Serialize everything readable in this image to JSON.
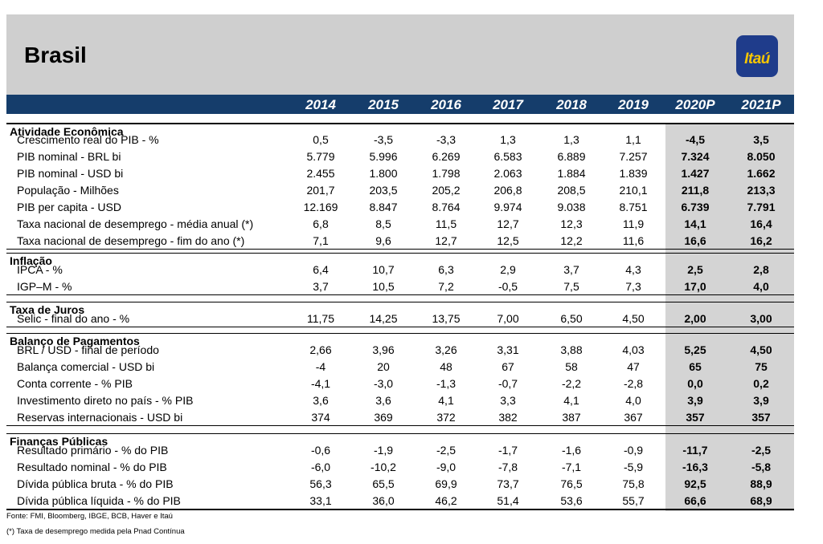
{
  "title": "Brasil",
  "logo": "Itaú",
  "years": [
    "2014",
    "2015",
    "2016",
    "2017",
    "2018",
    "2019",
    "2020P",
    "2021P"
  ],
  "sections": [
    {
      "label": "Atividade Econômica",
      "rows": [
        {
          "label": "Crescimento real do PIB - %",
          "values": [
            "0,5",
            "-3,5",
            "-3,3",
            "1,3",
            "1,3",
            "1,1",
            "-4,5",
            "3,5"
          ]
        },
        {
          "label": "PIB nominal - BRL bi",
          "values": [
            "5.779",
            "5.996",
            "6.269",
            "6.583",
            "6.889",
            "7.257",
            "7.324",
            "8.050"
          ]
        },
        {
          "label": "PIB nominal - USD bi",
          "values": [
            "2.455",
            "1.800",
            "1.798",
            "2.063",
            "1.884",
            "1.839",
            "1.427",
            "1.662"
          ]
        },
        {
          "label": "População - Milhões",
          "values": [
            "201,7",
            "203,5",
            "205,2",
            "206,8",
            "208,5",
            "210,1",
            "211,8",
            "213,3"
          ]
        },
        {
          "label": "PIB per capita - USD",
          "values": [
            "12.169",
            "8.847",
            "8.764",
            "9.974",
            "9.038",
            "8.751",
            "6.739",
            "7.791"
          ]
        },
        {
          "label": "Taxa nacional de desemprego - média anual (*)",
          "values": [
            "6,8",
            "8,5",
            "11,5",
            "12,7",
            "12,3",
            "11,9",
            "14,1",
            "16,4"
          ]
        },
        {
          "label": "Taxa nacional de desemprego - fim do ano (*)",
          "values": [
            "7,1",
            "9,6",
            "12,7",
            "12,5",
            "12,2",
            "11,6",
            "16,6",
            "16,2"
          ]
        }
      ]
    },
    {
      "label": "Inflação",
      "rows": [
        {
          "label": "IPCA - %",
          "values": [
            "6,4",
            "10,7",
            "6,3",
            "2,9",
            "3,7",
            "4,3",
            "2,5",
            "2,8"
          ]
        },
        {
          "label": "IGP–M - %",
          "values": [
            "3,7",
            "10,5",
            "7,2",
            "-0,5",
            "7,5",
            "7,3",
            "17,0",
            "4,0"
          ]
        }
      ]
    },
    {
      "label": "Taxa de Juros",
      "rows": [
        {
          "label": "Selic - final do ano - %",
          "values": [
            "11,75",
            "14,25",
            "13,75",
            "7,00",
            "6,50",
            "4,50",
            "2,00",
            "3,00"
          ]
        }
      ]
    },
    {
      "label": "Balanço de Pagamentos",
      "rows": [
        {
          "label": "BRL / USD - final de período",
          "values": [
            "2,66",
            "3,96",
            "3,26",
            "3,31",
            "3,88",
            "4,03",
            "5,25",
            "4,50"
          ]
        },
        {
          "label": "Balança comercial - USD bi",
          "values": [
            "-4",
            "20",
            "48",
            "67",
            "58",
            "47",
            "65",
            "75"
          ]
        },
        {
          "label": "Conta corrente - % PIB",
          "values": [
            "-4,1",
            "-3,0",
            "-1,3",
            "-0,7",
            "-2,2",
            "-2,8",
            "0,0",
            "0,2"
          ]
        },
        {
          "label": "Investimento direto no país - % PIB",
          "values": [
            "3,6",
            "3,6",
            "4,1",
            "3,3",
            "4,1",
            "4,0",
            "3,9",
            "3,9"
          ]
        },
        {
          "label": "Reservas internacionais - USD bi",
          "values": [
            "374",
            "369",
            "372",
            "382",
            "387",
            "367",
            "357",
            "357"
          ]
        }
      ]
    },
    {
      "label": "Finanças Públicas",
      "rows": [
        {
          "label": "Resultado primário - % do PIB",
          "values": [
            "-0,6",
            "-1,9",
            "-2,5",
            "-1,7",
            "-1,6",
            "-0,9",
            "-11,7",
            "-2,5"
          ]
        },
        {
          "label": "Resultado nominal - % do PIB",
          "values": [
            "-6,0",
            "-10,2",
            "-9,0",
            "-7,8",
            "-7,1",
            "-5,9",
            "-16,3",
            "-5,8"
          ]
        },
        {
          "label": "Dívida pública bruta - % do PIB",
          "values": [
            "56,3",
            "65,5",
            "69,9",
            "73,7",
            "76,5",
            "75,8",
            "92,5",
            "88,9"
          ]
        },
        {
          "label": "Dívida pública líquida - % do PIB",
          "values": [
            "33,1",
            "36,0",
            "46,2",
            "51,4",
            "53,6",
            "55,7",
            "66,6",
            "68,9"
          ]
        }
      ]
    }
  ],
  "source": "Fonte: FMI, Bloomberg, IBGE, BCB, Haver e Itaú",
  "note": "(*) Taxa de desemprego medida pela Pnad Contínua"
}
